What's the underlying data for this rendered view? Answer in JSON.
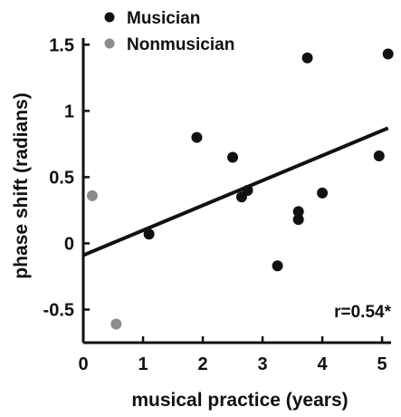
{
  "chart_data": {
    "type": "scatter",
    "xlabel": "musical practice (years)",
    "ylabel": "phase shift (radians)",
    "xlim": [
      0,
      5.15
    ],
    "ylim": [
      -0.75,
      1.55
    ],
    "x_ticks": [
      0,
      1,
      2,
      3,
      4,
      5
    ],
    "y_ticks": [
      -0.5,
      0,
      0.5,
      1,
      1.5
    ],
    "x_tick_labels": [
      "0",
      "1",
      "2",
      "3",
      "4",
      "5"
    ],
    "y_tick_labels": [
      "-0.5",
      "0",
      "0.5",
      "1",
      "1.5"
    ],
    "legend_position": "top-left",
    "annotation": "r=0.54*",
    "series": [
      {
        "name": "Musician",
        "color": "#111111",
        "points": [
          {
            "x": 1.1,
            "y": 0.07
          },
          {
            "x": 1.9,
            "y": 0.8
          },
          {
            "x": 2.5,
            "y": 0.65
          },
          {
            "x": 2.65,
            "y": 0.35
          },
          {
            "x": 2.75,
            "y": 0.4
          },
          {
            "x": 3.25,
            "y": -0.17
          },
          {
            "x": 3.6,
            "y": 0.24
          },
          {
            "x": 3.6,
            "y": 0.18
          },
          {
            "x": 3.75,
            "y": 1.4
          },
          {
            "x": 4.0,
            "y": 0.38
          },
          {
            "x": 4.95,
            "y": 0.66
          },
          {
            "x": 5.1,
            "y": 1.43
          }
        ]
      },
      {
        "name": "Nonmusician",
        "color": "#8c8c8c",
        "points": [
          {
            "x": 0.15,
            "y": 0.36
          },
          {
            "x": 0.55,
            "y": -0.61
          }
        ]
      }
    ],
    "fit_line": {
      "x": [
        0,
        5.1
      ],
      "y": [
        -0.09,
        0.87
      ]
    }
  }
}
